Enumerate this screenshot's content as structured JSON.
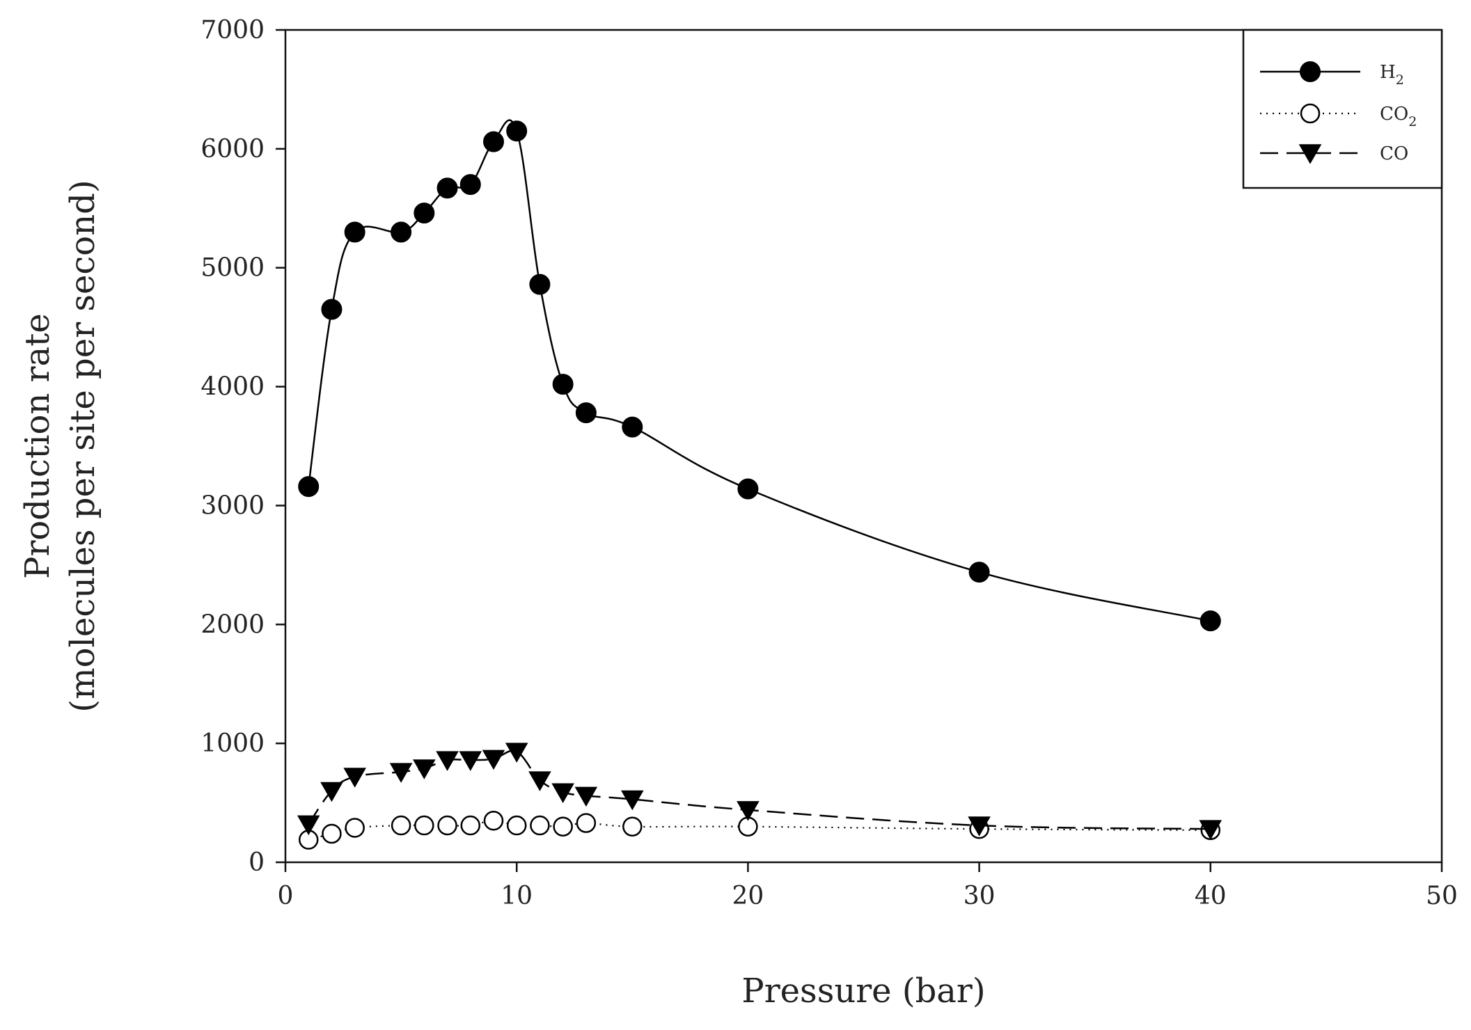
{
  "chart_data": {
    "type": "line",
    "title": "",
    "xlabel": "Pressure (bar)",
    "ylabel_line1": "Production rate",
    "ylabel_line2": "(molecules per site per second)",
    "xlim": [
      0,
      50
    ],
    "ylim": [
      0,
      7000
    ],
    "xticks": [
      0,
      10,
      20,
      30,
      40,
      50
    ],
    "yticks": [
      0,
      1000,
      2000,
      3000,
      4000,
      5000,
      6000,
      7000
    ],
    "grid": false,
    "legend_position": "top-right",
    "series": [
      {
        "name": "H",
        "name_sub": "2",
        "marker": "filled-circle",
        "line_style": "solid",
        "color": "#000000",
        "x": [
          1,
          2,
          3,
          5,
          6,
          7,
          8,
          9,
          10,
          11,
          12,
          13,
          15,
          20,
          30,
          40
        ],
        "y": [
          3160,
          4650,
          5300,
          5300,
          5460,
          5670,
          5700,
          6060,
          6150,
          4860,
          4020,
          3780,
          3660,
          3140,
          2440,
          2030
        ]
      },
      {
        "name": "CO",
        "name_sub": "2",
        "marker": "open-circle",
        "line_style": "dotted",
        "color": "#000000",
        "x": [
          1,
          2,
          3,
          5,
          6,
          7,
          8,
          9,
          10,
          11,
          12,
          13,
          15,
          20,
          30,
          40
        ],
        "y": [
          190,
          240,
          290,
          310,
          310,
          310,
          310,
          350,
          310,
          310,
          300,
          330,
          300,
          300,
          280,
          270
        ]
      },
      {
        "name": "CO",
        "name_sub": "",
        "marker": "filled-triangle-down",
        "line_style": "dashed",
        "color": "#000000",
        "x": [
          1,
          2,
          3,
          5,
          6,
          7,
          8,
          9,
          10,
          11,
          12,
          13,
          15,
          20,
          30,
          40
        ],
        "y": [
          320,
          600,
          720,
          760,
          790,
          860,
          860,
          870,
          930,
          690,
          590,
          560,
          530,
          440,
          310,
          280
        ]
      }
    ]
  }
}
